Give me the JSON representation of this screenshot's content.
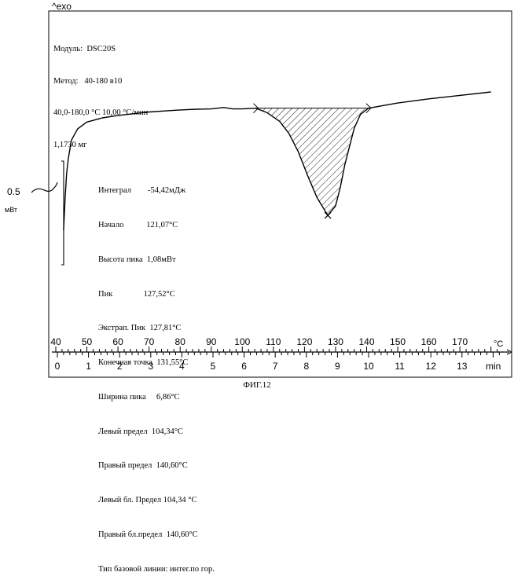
{
  "header": {
    "exo_label": "^exo",
    "info_lines": [
      "Модуль:  DSC20S",
      "Метод:   40-180 в10",
      "40,0-180,0 °C 10,00 °C/мин",
      "1,1730 мг"
    ]
  },
  "results": [
    "Интеграл        -54,42мДж",
    "Начало           121,07°C",
    "Высота пика  1,08мВт",
    "Пик               127,52°C",
    "Экстрап. Пик  127,81°C",
    "Конечная точка  131,55°C",
    "Ширина пика     6,86°C",
    "Левый предел  104,34°C",
    "Правый предел  140,60°C",
    "Левый бл. Предел 104,34 °C",
    "Правый бл.предел  140,60°C",
    "Тип базовой линии: интег.по гор."
  ],
  "scale": {
    "value": "0.5",
    "unit": "мВт"
  },
  "caption": "ФИГ.12",
  "chart_data": {
    "type": "line",
    "title": "",
    "temp_axis": {
      "unit": "°C",
      "ticks": [
        40,
        50,
        60,
        70,
        80,
        90,
        100,
        110,
        120,
        130,
        140,
        150,
        160,
        170
      ],
      "range": [
        40,
        182
      ]
    },
    "time_axis": {
      "unit": "min",
      "ticks": [
        0,
        1,
        2,
        3,
        4,
        5,
        6,
        7,
        8,
        9,
        10,
        11,
        12,
        13
      ],
      "range": [
        0,
        14.2
      ]
    },
    "heat_flow_scale_mW": 0.5,
    "series": [
      {
        "x_temp_C": [
          42.5,
          43,
          43.5,
          44,
          45,
          47,
          50,
          55,
          60,
          65,
          70,
          75,
          80,
          85,
          90,
          94,
          97,
          100,
          104.34,
          108,
          112,
          115,
          118,
          121.07,
          124,
          127.52,
          130,
          131.55,
          133,
          136,
          138,
          140.6,
          145,
          150,
          160,
          170,
          180
        ],
        "y_mW": [
          -2.15,
          -1.2,
          -0.5,
          -0.1,
          0.45,
          0.78,
          0.98,
          1.1,
          1.17,
          1.22,
          1.27,
          1.3,
          1.33,
          1.35,
          1.36,
          1.4,
          1.36,
          1.36,
          1.38,
          1.25,
          1.0,
          0.65,
          0.12,
          -0.58,
          -1.2,
          -1.72,
          -1.45,
          -0.9,
          -0.25,
          0.8,
          1.2,
          1.38,
          1.45,
          1.53,
          1.65,
          1.75,
          1.85
        ]
      }
    ],
    "peak": {
      "onset_C": 121.07,
      "peak_C": 127.52,
      "extrap_peak_C": 127.81,
      "endset_C": 131.55,
      "left_limit_C": 104.34,
      "right_limit_C": 140.6,
      "integral_mJ": -54.42,
      "height_mW": 1.08
    }
  }
}
